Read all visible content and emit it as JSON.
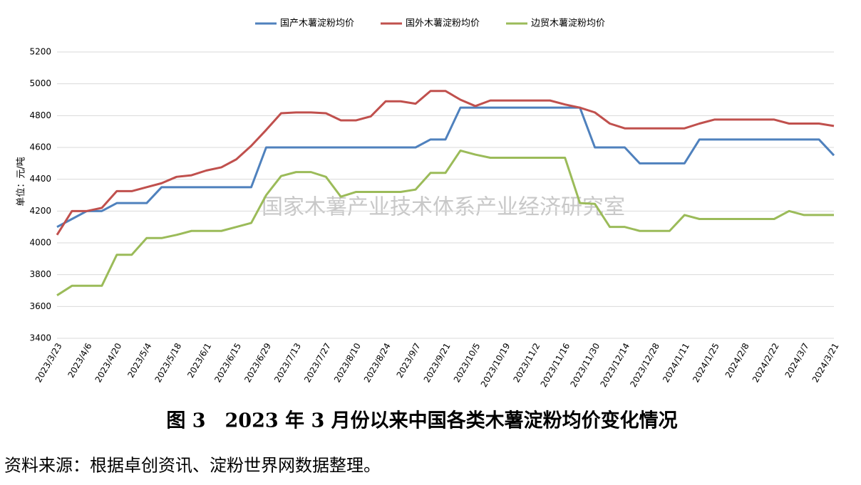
{
  "chart_data": {
    "type": "line",
    "y_label": "单位：元/吨",
    "watermark": "国家木薯产业技术体系产业经济研究室",
    "caption": "图 3　2023 年 3 月份以来中国各类木薯淀粉均价变化情况",
    "source": "资料来源：根据卓创资讯、淀粉世界网数据整理。",
    "categories": [
      "2023/3/23",
      null,
      "2023/4/6",
      null,
      "2023/4/20",
      null,
      "2023/5/4",
      null,
      "2023/5/18",
      null,
      "2023/6/1",
      null,
      "2023/6/15",
      null,
      "2023/6/29",
      null,
      "2023/7/13",
      null,
      "2023/7/27",
      null,
      "2023/8/10",
      null,
      "2023/8/24",
      null,
      "2023/9/7",
      null,
      "2023/9/21",
      null,
      "2023/10/5",
      null,
      "2023/10/19",
      null,
      "2023/11/2",
      null,
      "2023/11/16",
      null,
      "2023/11/30",
      null,
      "2023/12/14",
      null,
      "2023/12/28",
      null,
      "2024/1/11",
      null,
      "2024/1/25",
      null,
      "2024/2/8",
      null,
      "2024/2/22",
      null,
      "2024/3/7",
      null,
      "2024/3/21"
    ],
    "series": [
      {
        "name": "国产木薯淀粉均价",
        "color": "#4f81bd",
        "values": [
          4100,
          4150,
          4200,
          4200,
          4250,
          4250,
          4250,
          4350,
          4350,
          4350,
          4350,
          4350,
          4350,
          4350,
          4600,
          4600,
          4600,
          4600,
          4600,
          4600,
          4600,
          4600,
          4600,
          4600,
          4600,
          4650,
          4650,
          4850,
          4850,
          4850,
          4850,
          4850,
          4850,
          4850,
          4850,
          4850,
          4600,
          4600,
          4600,
          4500,
          4500,
          4500,
          4500,
          4650,
          4650,
          4650,
          4650,
          4650,
          4650,
          4650,
          4650,
          4650,
          4550
        ]
      },
      {
        "name": "国外木薯淀粉均价",
        "color": "#c0504d",
        "values": [
          4050,
          4200,
          4200,
          4220,
          4325,
          4325,
          4350,
          4375,
          4415,
          4425,
          4455,
          4475,
          4525,
          4610,
          4710,
          4815,
          4820,
          4820,
          4815,
          4770,
          4770,
          4795,
          4890,
          4890,
          4875,
          4955,
          4955,
          4900,
          4860,
          4895,
          4895,
          4895,
          4895,
          4895,
          4870,
          4850,
          4820,
          4750,
          4720,
          4720,
          4720,
          4720,
          4720,
          4750,
          4775,
          4775,
          4775,
          4775,
          4775,
          4750,
          4750,
          4750,
          4735
        ]
      },
      {
        "name": "边贸木薯淀粉均价",
        "color": "#9bbb59",
        "values": [
          3670,
          3730,
          3730,
          3730,
          3925,
          3925,
          4030,
          4030,
          4050,
          4075,
          4075,
          4075,
          4100,
          4125,
          4300,
          4420,
          4445,
          4445,
          4415,
          4290,
          4320,
          4320,
          4320,
          4320,
          4335,
          4440,
          4440,
          4580,
          4555,
          4535,
          4535,
          4535,
          4535,
          4535,
          4535,
          4250,
          4245,
          4100,
          4100,
          4075,
          4075,
          4075,
          4175,
          4150,
          4150,
          4150,
          4150,
          4150,
          4150,
          4200,
          4175,
          4175,
          4175
        ]
      }
    ],
    "ylim": [
      3400,
      5200
    ],
    "yticks": [
      3400,
      3600,
      3800,
      4000,
      4200,
      4400,
      4600,
      4800,
      5000,
      5200
    ],
    "grid": true,
    "legend": "top"
  }
}
